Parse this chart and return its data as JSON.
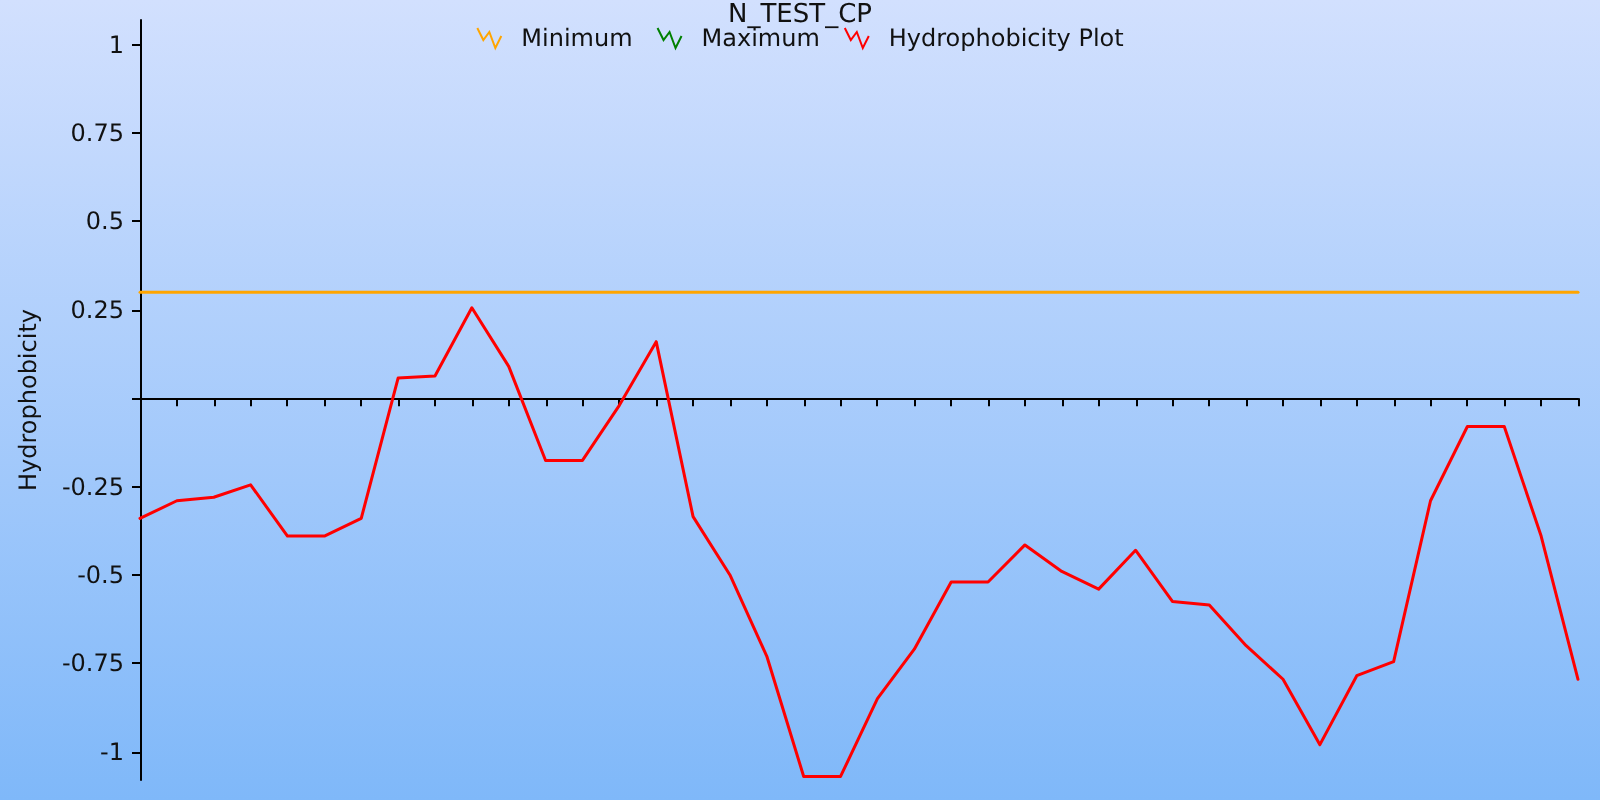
{
  "chart_data": {
    "type": "line",
    "title": "N_TEST_CP",
    "ylabel": "Hydrophobicity",
    "categories": [
      null,
      null,
      null,
      null,
      null,
      null,
      null,
      null,
      null,
      null,
      null,
      null,
      null,
      null,
      null,
      null,
      null,
      null,
      null,
      null,
      null,
      null,
      null,
      null,
      null,
      null,
      null,
      null,
      null,
      null,
      null,
      null,
      null,
      null,
      null,
      null,
      null,
      null,
      null,
      null
    ],
    "series": [
      {
        "name": "Minimum",
        "color": "#ffa500",
        "values": [
          0.3,
          0.3,
          0.3,
          0.3,
          0.3,
          0.3,
          0.3,
          0.3,
          0.3,
          0.3,
          0.3,
          0.3,
          0.3,
          0.3,
          0.3,
          0.3,
          0.3,
          0.3,
          0.3,
          0.3,
          0.3,
          0.3,
          0.3,
          0.3,
          0.3,
          0.3,
          0.3,
          0.3,
          0.3,
          0.3,
          0.3,
          0.3,
          0.3,
          0.3,
          0.3,
          0.3,
          0.3,
          0.3,
          0.3,
          0.3
        ]
      },
      {
        "name": "Maximum",
        "color": "#008000",
        "values": [
          null,
          null,
          null,
          null,
          null,
          null,
          null,
          null,
          null,
          null,
          null,
          null,
          null,
          null,
          null,
          null,
          null,
          null,
          null,
          null,
          null,
          null,
          null,
          null,
          null,
          null,
          null,
          null,
          null,
          null,
          null,
          null,
          null,
          null,
          null,
          null,
          null,
          null,
          null,
          null
        ]
      },
      {
        "name": "Hydrophobicity Plot",
        "color": "#ff0000",
        "values": [
          -0.34,
          -0.29,
          -0.28,
          -0.245,
          -0.39,
          -0.39,
          -0.34,
          0.057,
          0.063,
          0.256,
          0.09,
          -0.176,
          -0.176,
          -0.02,
          0.16,
          -0.335,
          -0.5,
          -0.73,
          -1.07,
          -1.07,
          -0.85,
          -0.71,
          -0.52,
          -0.52,
          -0.415,
          -0.49,
          -0.54,
          -0.43,
          -0.575,
          -0.585,
          -0.7,
          -0.795,
          -0.98,
          -0.785,
          -0.745,
          -0.29,
          -0.08,
          -0.08,
          -0.39,
          -0.795
        ]
      }
    ],
    "ylim": [
      -1.08,
      1.07
    ],
    "yticks": [
      -1,
      -0.75,
      -0.5,
      -0.25,
      {
        "value": 0,
        "label": null
      },
      0.25,
      0.5,
      0.75,
      1
    ],
    "tick_labels": "y",
    "legend": "top",
    "marker": "none",
    "line_style": "solid"
  }
}
